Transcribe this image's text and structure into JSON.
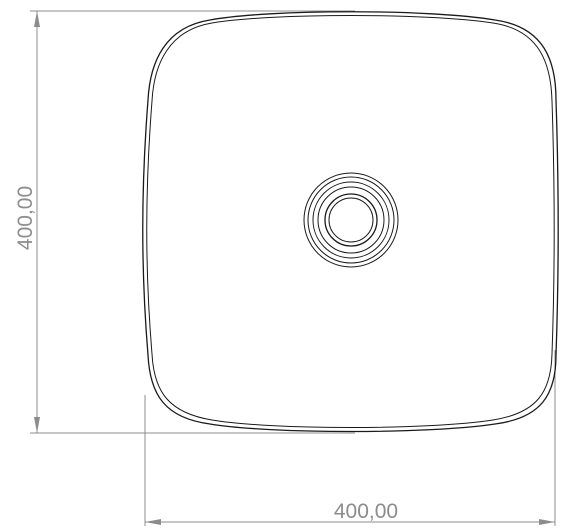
{
  "drawing": {
    "subject": "square-basin-top-view",
    "dimensions": {
      "height_label": "400,00",
      "width_label": "400,00"
    },
    "colors": {
      "dimension": "#8c8c8c",
      "outline": "#1a1a1a"
    }
  }
}
